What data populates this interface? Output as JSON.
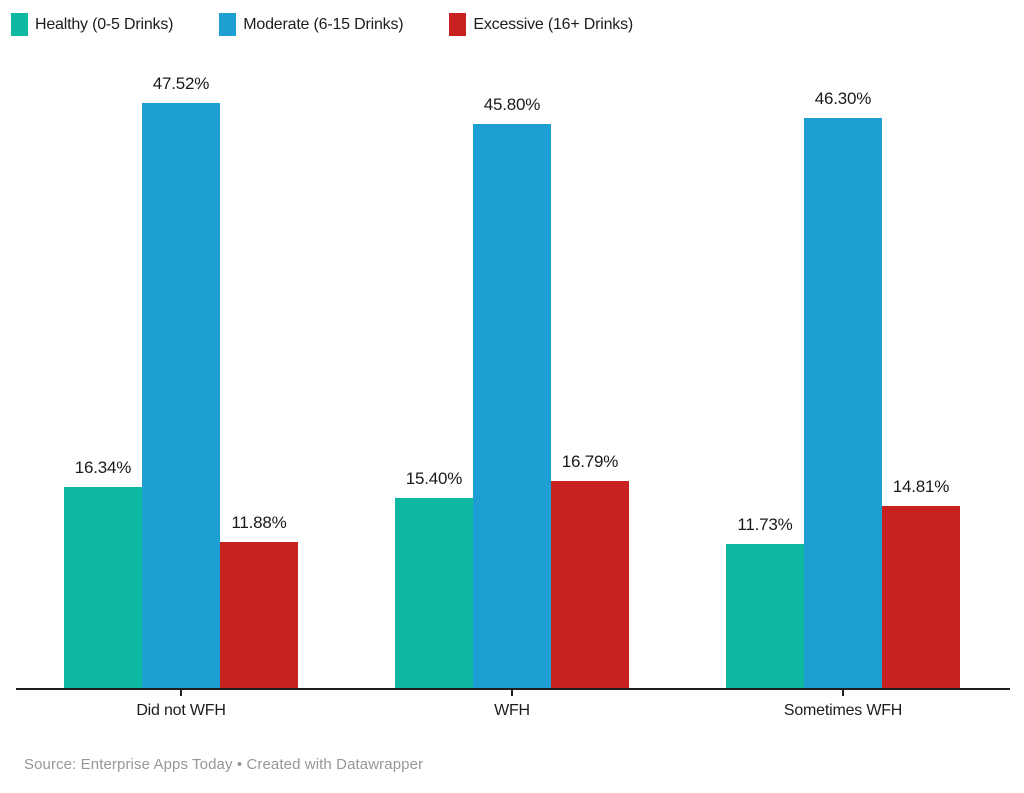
{
  "legend": {
    "items": [
      {
        "label": "Healthy (0-5 Drinks)",
        "color": "#0db9a0"
      },
      {
        "label": "Moderate (6-15 Drinks)",
        "color": "#1d9fd3"
      },
      {
        "label": "Excessive (16+ Drinks)",
        "color": "#c82120"
      }
    ]
  },
  "chart_data": {
    "type": "bar",
    "title": "",
    "xlabel": "",
    "ylabel": "",
    "categories": [
      "Did not WFH",
      "WFH",
      "Sometimes WFH"
    ],
    "series": [
      {
        "name": "Healthy (0-5 Drinks)",
        "color": "#0db9a0",
        "values": [
          16.34,
          15.4,
          11.73
        ],
        "labels": [
          "16.34%",
          "15.40%",
          "11.73%"
        ]
      },
      {
        "name": "Moderate (6-15 Drinks)",
        "color": "#1d9fd3",
        "values": [
          47.52,
          45.8,
          46.3
        ],
        "labels": [
          "47.52%",
          "45.80%",
          "46.30%"
        ]
      },
      {
        "name": "Excessive (16+ Drinks)",
        "color": "#c82120",
        "values": [
          11.88,
          16.79,
          14.81
        ],
        "labels": [
          "11.88%",
          "16.79%",
          "14.81%"
        ]
      }
    ],
    "value_format": "percent",
    "ylim": [
      0,
      50
    ],
    "grid": false,
    "y_axis_visible": false,
    "legend_position": "top-left",
    "bar_value_labels": "above-bar"
  },
  "footer": {
    "text": "Source: Enterprise Apps Today • Created with Datawrapper"
  }
}
